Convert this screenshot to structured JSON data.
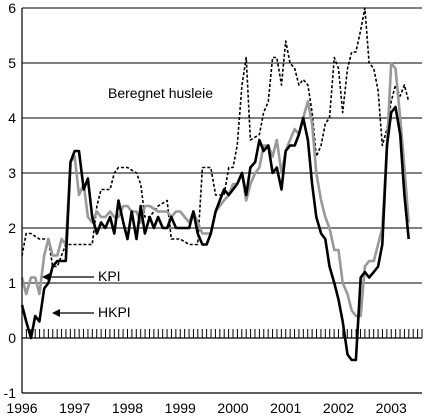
{
  "chart_data": {
    "type": "line",
    "title": "",
    "xlabel": "",
    "ylabel": "",
    "ylim": [
      -1,
      6
    ],
    "yticks": [
      "-1",
      "0",
      "1",
      "2",
      "3",
      "4",
      "5",
      "6"
    ],
    "xlim": [
      1996.0,
      2003.583
    ],
    "xticks": [
      "1996",
      "1997",
      "1998",
      "1999",
      "2000",
      "2001",
      "2002",
      "2003"
    ],
    "grid": "horizontal",
    "annotations": {
      "kpi": "KPI",
      "hkpi": "HKPI",
      "husleie": "Beregnet husleie"
    },
    "colors": {
      "KPI": "#999999",
      "HKPI": "#000000",
      "Beregnet husleie": "#000000"
    },
    "series": [
      {
        "name": "Beregnet husleie",
        "style": "dotted",
        "points": [
          [
            1996.0,
            1.5
          ],
          [
            1996.08,
            1.9
          ],
          [
            1996.17,
            1.9
          ],
          [
            1996.33,
            1.8
          ],
          [
            1996.5,
            1.8
          ],
          [
            1996.58,
            1.3
          ],
          [
            1996.67,
            1.3
          ],
          [
            1996.83,
            1.7
          ],
          [
            1996.92,
            1.7
          ],
          [
            1997.0,
            1.7
          ],
          [
            1997.08,
            1.7
          ],
          [
            1997.25,
            1.7
          ],
          [
            1997.33,
            1.7
          ],
          [
            1997.42,
            2.4
          ],
          [
            1997.5,
            2.7
          ],
          [
            1997.67,
            2.7
          ],
          [
            1997.75,
            3.0
          ],
          [
            1997.83,
            3.1
          ],
          [
            1998.0,
            3.1
          ],
          [
            1998.17,
            3.0
          ],
          [
            1998.25,
            2.8
          ],
          [
            1998.33,
            2.2
          ],
          [
            1998.42,
            2.2
          ],
          [
            1998.58,
            2.4
          ],
          [
            1998.75,
            2.5
          ],
          [
            1998.83,
            1.8
          ],
          [
            1999.0,
            1.8
          ],
          [
            1999.17,
            1.7
          ],
          [
            1999.33,
            1.7
          ],
          [
            1999.42,
            3.1
          ],
          [
            1999.58,
            3.1
          ],
          [
            1999.67,
            2.6
          ],
          [
            1999.83,
            2.6
          ],
          [
            1999.92,
            3.1
          ],
          [
            2000.0,
            3.1
          ],
          [
            2000.08,
            3.5
          ],
          [
            2000.17,
            4.6
          ],
          [
            2000.25,
            5.1
          ],
          [
            2000.33,
            3.6
          ],
          [
            2000.5,
            3.7
          ],
          [
            2000.58,
            4.1
          ],
          [
            2000.67,
            4.3
          ],
          [
            2000.75,
            5.1
          ],
          [
            2000.83,
            5.1
          ],
          [
            2000.92,
            4.6
          ],
          [
            2001.0,
            5.4
          ],
          [
            2001.08,
            5.0
          ],
          [
            2001.17,
            4.9
          ],
          [
            2001.25,
            4.6
          ],
          [
            2001.33,
            4.7
          ],
          [
            2001.42,
            4.6
          ],
          [
            2001.5,
            4.1
          ],
          [
            2001.58,
            3.3
          ],
          [
            2001.67,
            3.5
          ],
          [
            2001.75,
            3.9
          ],
          [
            2001.83,
            4.0
          ],
          [
            2001.92,
            5.1
          ],
          [
            2002.0,
            4.9
          ],
          [
            2002.08,
            4.1
          ],
          [
            2002.17,
            4.9
          ],
          [
            2002.25,
            5.2
          ],
          [
            2002.33,
            5.2
          ],
          [
            2002.42,
            5.6
          ],
          [
            2002.5,
            6.0
          ],
          [
            2002.58,
            5.0
          ],
          [
            2002.67,
            4.9
          ],
          [
            2002.75,
            4.5
          ],
          [
            2002.83,
            3.5
          ],
          [
            2002.92,
            3.8
          ],
          [
            2003.0,
            4.3
          ],
          [
            2003.08,
            4.6
          ],
          [
            2003.17,
            4.4
          ],
          [
            2003.25,
            4.6
          ],
          [
            2003.33,
            4.3
          ]
        ]
      },
      {
        "name": "KPI",
        "style": "solid-gray",
        "points": [
          [
            1996.0,
            1.1
          ],
          [
            1996.08,
            0.8
          ],
          [
            1996.17,
            1.1
          ],
          [
            1996.25,
            1.1
          ],
          [
            1996.33,
            0.8
          ],
          [
            1996.42,
            1.5
          ],
          [
            1996.5,
            1.8
          ],
          [
            1996.58,
            1.5
          ],
          [
            1996.67,
            1.5
          ],
          [
            1996.75,
            1.8
          ],
          [
            1996.83,
            1.7
          ],
          [
            1996.92,
            3.2
          ],
          [
            1997.0,
            3.3
          ],
          [
            1997.08,
            2.6
          ],
          [
            1997.17,
            2.8
          ],
          [
            1997.25,
            2.2
          ],
          [
            1997.33,
            2.1
          ],
          [
            1997.42,
            2.3
          ],
          [
            1997.5,
            2.2
          ],
          [
            1997.58,
            2.2
          ],
          [
            1997.67,
            2.3
          ],
          [
            1997.75,
            2.2
          ],
          [
            1997.83,
            2.2
          ],
          [
            1997.92,
            2.4
          ],
          [
            1998.0,
            2.4
          ],
          [
            1998.08,
            2.3
          ],
          [
            1998.17,
            2.3
          ],
          [
            1998.25,
            2.1
          ],
          [
            1998.33,
            2.4
          ],
          [
            1998.42,
            2.4
          ],
          [
            1998.58,
            2.3
          ],
          [
            1998.75,
            2.3
          ],
          [
            1998.83,
            2.2
          ],
          [
            1998.92,
            2.3
          ],
          [
            1999.0,
            2.3
          ],
          [
            1999.17,
            2.1
          ],
          [
            1999.25,
            2.3
          ],
          [
            1999.33,
            2.1
          ],
          [
            1999.42,
            1.9
          ],
          [
            1999.58,
            1.9
          ],
          [
            1999.67,
            2.3
          ],
          [
            1999.83,
            2.5
          ],
          [
            1999.92,
            2.6
          ],
          [
            2000.0,
            2.8
          ],
          [
            2000.08,
            2.8
          ],
          [
            2000.17,
            3.0
          ],
          [
            2000.25,
            2.5
          ],
          [
            2000.33,
            2.8
          ],
          [
            2000.42,
            3.0
          ],
          [
            2000.5,
            3.1
          ],
          [
            2000.58,
            3.5
          ],
          [
            2000.67,
            3.5
          ],
          [
            2000.75,
            3.3
          ],
          [
            2000.83,
            3.6
          ],
          [
            2000.92,
            3.0
          ],
          [
            2001.0,
            3.4
          ],
          [
            2001.08,
            3.6
          ],
          [
            2001.17,
            3.8
          ],
          [
            2001.25,
            3.7
          ],
          [
            2001.33,
            4.0
          ],
          [
            2001.42,
            4.3
          ],
          [
            2001.5,
            3.9
          ],
          [
            2001.58,
            3.0
          ],
          [
            2001.67,
            2.5
          ],
          [
            2001.75,
            2.2
          ],
          [
            2001.83,
            2.0
          ],
          [
            2001.92,
            1.6
          ],
          [
            2002.0,
            1.6
          ],
          [
            2002.08,
            1.0
          ],
          [
            2002.17,
            0.8
          ],
          [
            2002.25,
            0.5
          ],
          [
            2002.33,
            0.4
          ],
          [
            2002.42,
            0.4
          ],
          [
            2002.5,
            1.3
          ],
          [
            2002.58,
            1.4
          ],
          [
            2002.67,
            1.4
          ],
          [
            2002.75,
            1.7
          ],
          [
            2002.83,
            2.0
          ],
          [
            2002.92,
            3.5
          ],
          [
            2003.0,
            5.0
          ],
          [
            2003.08,
            4.9
          ],
          [
            2003.17,
            4.0
          ],
          [
            2003.25,
            3.1
          ],
          [
            2003.33,
            2.1
          ]
        ]
      },
      {
        "name": "HKPI",
        "style": "solid-black",
        "points": [
          [
            1996.0,
            0.6
          ],
          [
            1996.08,
            0.3
          ],
          [
            1996.17,
            0.0
          ],
          [
            1996.25,
            0.4
          ],
          [
            1996.33,
            0.3
          ],
          [
            1996.42,
            0.9
          ],
          [
            1996.5,
            1.0
          ],
          [
            1996.58,
            1.3
          ],
          [
            1996.67,
            1.4
          ],
          [
            1996.75,
            1.4
          ],
          [
            1996.83,
            1.4
          ],
          [
            1996.92,
            3.2
          ],
          [
            1997.0,
            3.4
          ],
          [
            1997.08,
            3.4
          ],
          [
            1997.17,
            2.7
          ],
          [
            1997.25,
            2.9
          ],
          [
            1997.33,
            2.2
          ],
          [
            1997.42,
            1.9
          ],
          [
            1997.5,
            2.1
          ],
          [
            1997.58,
            2.0
          ],
          [
            1997.67,
            2.2
          ],
          [
            1997.75,
            1.9
          ],
          [
            1997.83,
            2.5
          ],
          [
            1997.92,
            2.1
          ],
          [
            1998.0,
            1.8
          ],
          [
            1998.08,
            2.3
          ],
          [
            1998.17,
            1.8
          ],
          [
            1998.25,
            2.4
          ],
          [
            1998.33,
            1.9
          ],
          [
            1998.42,
            2.2
          ],
          [
            1998.5,
            2.0
          ],
          [
            1998.58,
            2.2
          ],
          [
            1998.67,
            2.0
          ],
          [
            1998.75,
            2.0
          ],
          [
            1998.83,
            2.2
          ],
          [
            1998.92,
            2.0
          ],
          [
            1999.0,
            2.0
          ],
          [
            1999.08,
            2.0
          ],
          [
            1999.17,
            2.0
          ],
          [
            1999.25,
            2.3
          ],
          [
            1999.33,
            1.9
          ],
          [
            1999.42,
            1.7
          ],
          [
            1999.5,
            1.7
          ],
          [
            1999.58,
            1.9
          ],
          [
            1999.67,
            2.3
          ],
          [
            1999.75,
            2.5
          ],
          [
            1999.83,
            2.7
          ],
          [
            1999.92,
            2.6
          ],
          [
            2000.0,
            2.7
          ],
          [
            2000.08,
            2.8
          ],
          [
            2000.17,
            3.0
          ],
          [
            2000.25,
            2.6
          ],
          [
            2000.33,
            3.1
          ],
          [
            2000.42,
            3.2
          ],
          [
            2000.5,
            3.6
          ],
          [
            2000.58,
            3.4
          ],
          [
            2000.67,
            3.5
          ],
          [
            2000.75,
            3.0
          ],
          [
            2000.83,
            3.1
          ],
          [
            2000.92,
            2.7
          ],
          [
            2001.0,
            3.4
          ],
          [
            2001.08,
            3.5
          ],
          [
            2001.17,
            3.5
          ],
          [
            2001.25,
            3.7
          ],
          [
            2001.33,
            4.0
          ],
          [
            2001.42,
            3.6
          ],
          [
            2001.5,
            2.8
          ],
          [
            2001.58,
            2.2
          ],
          [
            2001.67,
            1.9
          ],
          [
            2001.75,
            1.8
          ],
          [
            2001.83,
            1.3
          ],
          [
            2001.92,
            1.0
          ],
          [
            2002.0,
            0.7
          ],
          [
            2002.08,
            0.3
          ],
          [
            2002.17,
            -0.3
          ],
          [
            2002.25,
            -0.4
          ],
          [
            2002.33,
            -0.4
          ],
          [
            2002.42,
            1.1
          ],
          [
            2002.5,
            1.2
          ],
          [
            2002.58,
            1.1
          ],
          [
            2002.67,
            1.2
          ],
          [
            2002.75,
            1.3
          ],
          [
            2002.83,
            1.7
          ],
          [
            2002.92,
            3.5
          ],
          [
            2003.0,
            4.1
          ],
          [
            2003.08,
            4.2
          ],
          [
            2003.17,
            3.7
          ],
          [
            2003.25,
            2.6
          ],
          [
            2003.33,
            1.8
          ]
        ]
      }
    ]
  }
}
